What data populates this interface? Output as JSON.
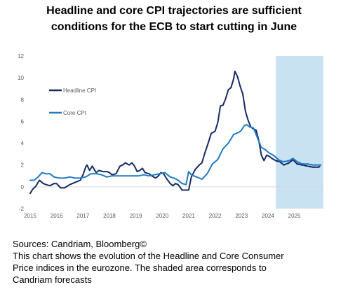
{
  "header": {
    "title_line1": "Headline and core CPI trajectories are sufficient",
    "title_line2": "conditions for the ECB to start cutting in June"
  },
  "footer": {
    "sources": "Sources: Candriam, Bloomberg©",
    "description_line1": "This chart shows the evolution of the Headline and Core Consumer",
    "description_line2": "Price indices in the eurozone. The shaded area corresponds to",
    "description_line3": "Candriam forecasts"
  },
  "chart_data": {
    "type": "line",
    "title": "",
    "xlabel": "",
    "ylabel": "",
    "xlim": [
      2015.0,
      2026.1
    ],
    "ylim": [
      -2,
      12
    ],
    "yticks": [
      -2,
      0,
      2,
      4,
      6,
      8,
      10,
      12
    ],
    "xticks": [
      2015,
      2016,
      2017,
      2018,
      2019,
      2020,
      2021,
      2022,
      2023,
      2024,
      2025
    ],
    "grid": false,
    "legend_position": "top-left",
    "forecast_region": {
      "start": 2024.3,
      "end": 2026.1,
      "color": "#c9e2f2"
    },
    "series": [
      {
        "name": "Headline CPI",
        "color": "#172b63",
        "x": [
          2015.0,
          2015.1,
          2015.2,
          2015.35,
          2015.5,
          2015.6,
          2015.75,
          2015.9,
          2016.0,
          2016.15,
          2016.3,
          2016.5,
          2016.7,
          2016.9,
          2017.0,
          2017.1,
          2017.15,
          2017.25,
          2017.35,
          2017.5,
          2017.6,
          2017.75,
          2017.9,
          2018.0,
          2018.1,
          2018.25,
          2018.4,
          2018.5,
          2018.6,
          2018.75,
          2018.85,
          2018.95,
          2019.05,
          2019.15,
          2019.25,
          2019.35,
          2019.5,
          2019.6,
          2019.75,
          2019.85,
          2019.95,
          2020.05,
          2020.15,
          2020.3,
          2020.4,
          2020.5,
          2020.6,
          2020.75,
          2020.9,
          2021.0,
          2021.1,
          2021.25,
          2021.4,
          2021.5,
          2021.6,
          2021.75,
          2021.85,
          2022.0,
          2022.1,
          2022.2,
          2022.3,
          2022.4,
          2022.5,
          2022.6,
          2022.7,
          2022.75,
          2022.85,
          2022.95,
          2023.05,
          2023.15,
          2023.25,
          2023.35,
          2023.45,
          2023.55,
          2023.65,
          2023.75,
          2023.85,
          2023.95,
          2024.05,
          2024.15,
          2024.3
        ],
        "y": [
          -0.6,
          -0.2,
          0.0,
          0.6,
          0.3,
          0.2,
          0.1,
          0.3,
          0.3,
          -0.1,
          -0.1,
          0.2,
          0.4,
          0.6,
          1.1,
          1.8,
          2.0,
          1.5,
          1.9,
          1.3,
          1.5,
          1.4,
          1.4,
          1.3,
          1.1,
          1.2,
          1.9,
          2.0,
          2.2,
          2.0,
          2.2,
          1.9,
          1.4,
          1.5,
          1.7,
          1.3,
          1.2,
          1.0,
          0.8,
          1.0,
          1.3,
          1.2,
          0.8,
          0.3,
          0.1,
          0.3,
          0.2,
          -0.3,
          -0.3,
          -0.3,
          0.9,
          1.6,
          2.0,
          2.2,
          3.0,
          4.1,
          4.9,
          5.1,
          5.9,
          7.4,
          7.5,
          8.1,
          8.9,
          9.1,
          9.9,
          10.6,
          10.1,
          9.2,
          8.5,
          6.9,
          6.1,
          5.5,
          5.3,
          5.2,
          4.3,
          2.9,
          2.4,
          2.9,
          2.8,
          2.6,
          2.4
        ]
      },
      {
        "name": "Core CPI",
        "color": "#1f7ac4",
        "x": [
          2015.0,
          2015.15,
          2015.3,
          2015.45,
          2015.6,
          2015.75,
          2015.9,
          2016.1,
          2016.3,
          2016.5,
          2016.7,
          2016.9,
          2017.1,
          2017.3,
          2017.5,
          2017.7,
          2017.9,
          2018.1,
          2018.3,
          2018.5,
          2018.7,
          2018.9,
          2019.1,
          2019.3,
          2019.5,
          2019.7,
          2019.9,
          2020.1,
          2020.3,
          2020.45,
          2020.6,
          2020.75,
          2020.9,
          2021.0,
          2021.1,
          2021.3,
          2021.5,
          2021.7,
          2021.9,
          2022.1,
          2022.3,
          2022.5,
          2022.7,
          2022.9,
          2023.0,
          2023.1,
          2023.2,
          2023.3,
          2023.45,
          2023.6,
          2023.75,
          2023.9,
          2024.05,
          2024.2,
          2024.3
        ],
        "y": [
          0.6,
          0.6,
          0.9,
          1.3,
          1.2,
          1.2,
          0.9,
          0.8,
          0.8,
          0.9,
          0.8,
          0.8,
          0.9,
          1.2,
          1.2,
          1.1,
          0.9,
          1.0,
          1.0,
          1.0,
          1.0,
          1.0,
          1.0,
          1.1,
          1.0,
          1.1,
          1.2,
          1.3,
          0.9,
          0.8,
          0.6,
          0.3,
          0.2,
          1.4,
          1.1,
          0.9,
          0.7,
          1.2,
          2.1,
          2.5,
          3.5,
          4.0,
          4.8,
          5.0,
          5.2,
          5.6,
          5.7,
          5.5,
          5.4,
          4.5,
          3.6,
          3.4,
          3.1,
          2.9,
          2.7
        ]
      },
      {
        "name": "Headline CPI forecast",
        "color": "#172b63",
        "dashed": true,
        "x": [
          2024.3,
          2024.45,
          2024.6,
          2024.8,
          2024.95,
          2025.1,
          2025.3,
          2025.5,
          2025.7,
          2025.9,
          2026.0
        ],
        "y": [
          2.4,
          2.3,
          2.0,
          2.2,
          2.5,
          2.1,
          2.0,
          1.9,
          1.8,
          1.8,
          1.9
        ]
      },
      {
        "name": "Core CPI forecast",
        "color": "#1f7ac4",
        "dashed": true,
        "x": [
          2024.3,
          2024.45,
          2024.6,
          2024.8,
          2024.95,
          2025.1,
          2025.3,
          2025.5,
          2025.7,
          2025.9,
          2026.0
        ],
        "y": [
          2.7,
          2.4,
          2.3,
          2.4,
          2.6,
          2.3,
          2.1,
          2.1,
          2.0,
          2.0,
          2.0
        ]
      }
    ],
    "legend": [
      {
        "label": "Headline CPI",
        "color": "#172b63"
      },
      {
        "label": "Core CPI",
        "color": "#1f7ac4"
      }
    ]
  }
}
